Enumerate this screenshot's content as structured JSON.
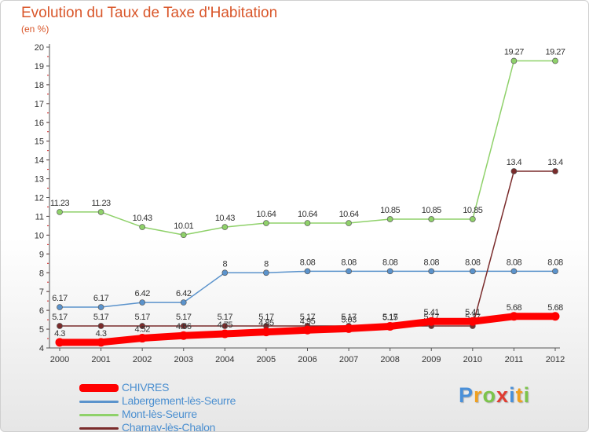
{
  "title": "Evolution du Taux de Taxe d'Habitation",
  "subtitle": "(en %)",
  "chart_data": {
    "type": "line",
    "title": "Evolution du Taux de Taxe d'Habitation",
    "ylabel": "(en %)",
    "x": [
      "2000",
      "2001",
      "2002",
      "2003",
      "2004",
      "2005",
      "2006",
      "2007",
      "2008",
      "2009",
      "2010",
      "2011",
      "2012"
    ],
    "yticks": [
      4,
      5,
      6,
      7,
      8,
      9,
      10,
      11,
      12,
      13,
      14,
      15,
      16,
      17,
      18,
      19,
      20
    ],
    "ylim": [
      4,
      20
    ],
    "grid": false,
    "legend_position": "bottom-left",
    "series": [
      {
        "name": "CHIVRES",
        "color": "#ff0000",
        "values": [
          4.3,
          4.3,
          4.52,
          4.66,
          4.75,
          4.85,
          4.95,
          5.03,
          5.15,
          5.41,
          5.41,
          5.68,
          5.68
        ],
        "labels": [
          "4.3",
          "4.3",
          "4.52",
          "4.66",
          "4.75",
          "4.85",
          "4.95",
          "5.03",
          "5.15",
          "5.41",
          "5.41",
          "5.68",
          "5.68"
        ]
      },
      {
        "name": "Labergement-lès-Seurre",
        "color": "#5b93cc",
        "values": [
          6.17,
          6.17,
          6.42,
          6.42,
          8,
          8,
          8.08,
          8.08,
          8.08,
          8.08,
          8.08,
          8.08,
          8.08
        ],
        "labels": [
          "6.17",
          "6.17",
          "6.42",
          "6.42",
          "8",
          "8",
          "8.08",
          "8.08",
          "8.08",
          "8.08",
          "8.08",
          "8.08",
          "8.08"
        ]
      },
      {
        "name": "Mont-lès-Seurre",
        "color": "#8fd16a",
        "values": [
          11.23,
          11.23,
          10.43,
          10.01,
          10.43,
          10.64,
          10.64,
          10.64,
          10.85,
          10.85,
          10.85,
          19.27,
          19.27
        ],
        "labels": [
          "11.23",
          "11.23",
          "10.43",
          "10.01",
          "10.43",
          "10.64",
          "10.64",
          "10.64",
          "10.85",
          "10.85",
          "10.85",
          "19.27",
          "19.27"
        ]
      },
      {
        "name": "Charnay-lès-Chalon",
        "color": "#7a2b2b",
        "values": [
          5.17,
          5.17,
          5.17,
          5.17,
          5.17,
          5.17,
          5.17,
          5.17,
          5.17,
          5.17,
          5.17,
          13.4,
          13.4
        ],
        "labels": [
          "5.17",
          "5.17",
          "5.17",
          "5.17",
          "5.17",
          "5.17",
          "5.17",
          "5.17",
          "5.17",
          "5.17",
          "5.17",
          "13.4",
          "13.4"
        ]
      }
    ]
  },
  "legend": [
    {
      "label": "CHIVRES",
      "color": "#ff0000"
    },
    {
      "label": "Labergement-lès-Seurre",
      "color": "#5b93cc"
    },
    {
      "label": "Mont-lès-Seurre",
      "color": "#8fd16a"
    },
    {
      "label": "Charnay-lès-Chalon",
      "color": "#7a2b2b"
    }
  ],
  "logo": {
    "text": "Proxiti",
    "letters": [
      "P",
      "r",
      "o",
      "x",
      "i",
      "t",
      "i"
    ],
    "colors": [
      "#4a90d9",
      "#f0a020",
      "#7cc44a",
      "#e03c31",
      "#4a90d9",
      "#f0a020",
      "#7cc44a"
    ]
  }
}
